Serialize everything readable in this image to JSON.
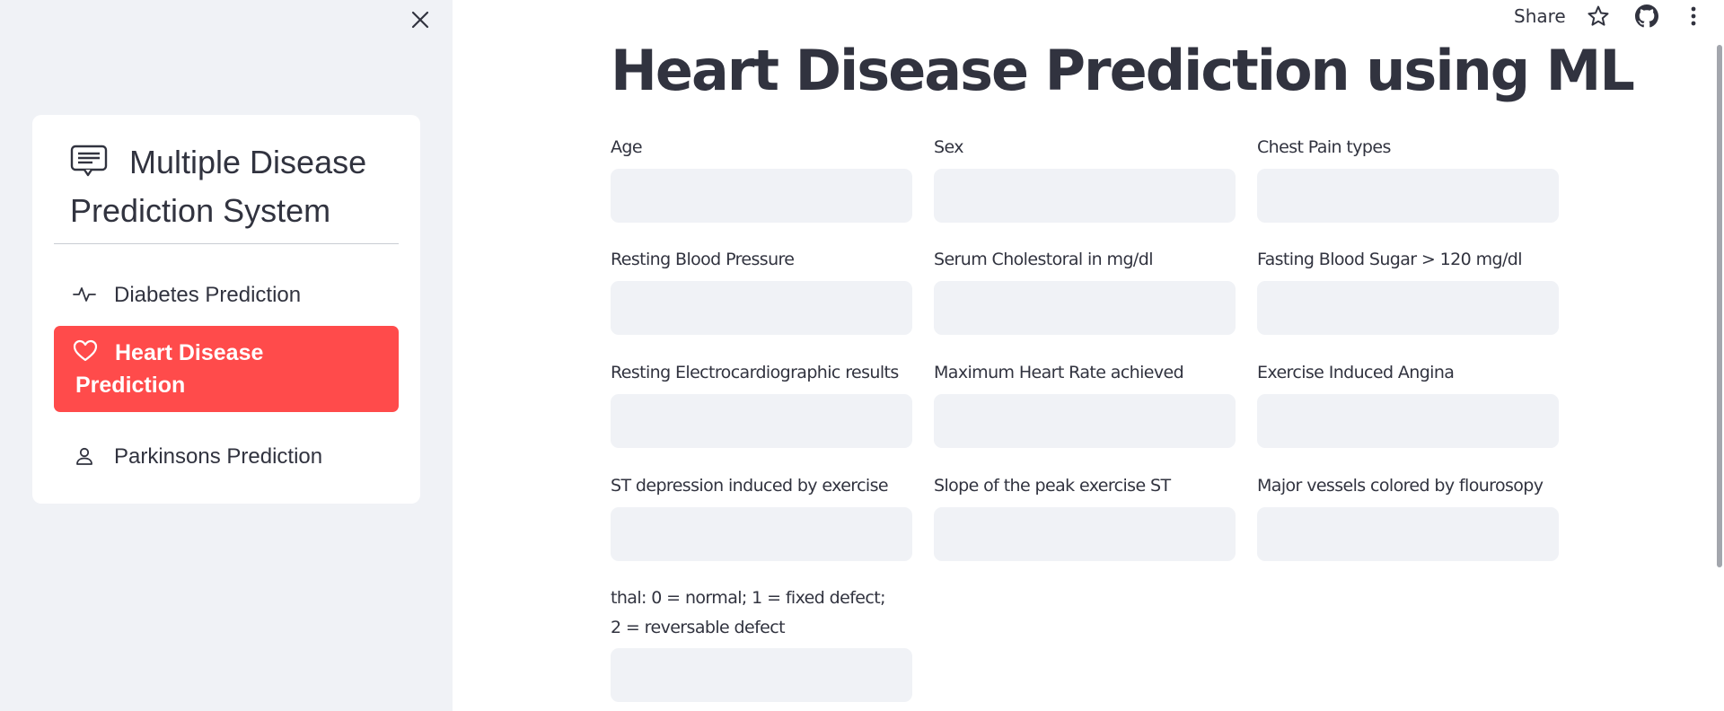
{
  "sidebar": {
    "close_icon": "close-icon",
    "menu_title": "Multiple Disease Prediction System",
    "title_icon": "chat-left-text-icon",
    "items": [
      {
        "label": "Diabetes Prediction",
        "icon": "activity-icon",
        "selected": false
      },
      {
        "label": "Heart Disease Prediction",
        "icon": "heart-icon",
        "selected": true
      },
      {
        "label": "Parkinsons Prediction",
        "icon": "person-icon",
        "selected": false
      }
    ],
    "selected_color": "#ff4b4b"
  },
  "toolbar": {
    "share_label": "Share",
    "star_icon": "star-icon",
    "github_icon": "github-icon",
    "menu_icon": "more-vertical-icon"
  },
  "main": {
    "title": "Heart Disease Prediction using ML",
    "fields": [
      {
        "label": "Age",
        "value": ""
      },
      {
        "label": "Sex",
        "value": ""
      },
      {
        "label": "Chest Pain types",
        "value": ""
      },
      {
        "label": "Resting Blood Pressure",
        "value": ""
      },
      {
        "label": "Serum Cholestoral in mg/dl",
        "value": ""
      },
      {
        "label": "Fasting Blood Sugar > 120 mg/dl",
        "value": ""
      },
      {
        "label": "Resting Electrocardiographic results",
        "value": ""
      },
      {
        "label": "Maximum Heart Rate achieved",
        "value": ""
      },
      {
        "label": "Exercise Induced Angina",
        "value": ""
      },
      {
        "label": "ST depression induced by exercise",
        "value": ""
      },
      {
        "label": "Slope of the peak exercise ST segment",
        "value": ""
      },
      {
        "label": "Major vessels colored by flourosopy",
        "value": ""
      },
      {
        "label": "thal: 0 = normal; 1 = fixed defect; 2 = reversable defect",
        "value": ""
      }
    ]
  },
  "colors": {
    "accent": "#ff4b4b",
    "sidebar_bg": "#f0f2f6",
    "input_bg": "#f0f2f6",
    "text": "#31333f"
  }
}
